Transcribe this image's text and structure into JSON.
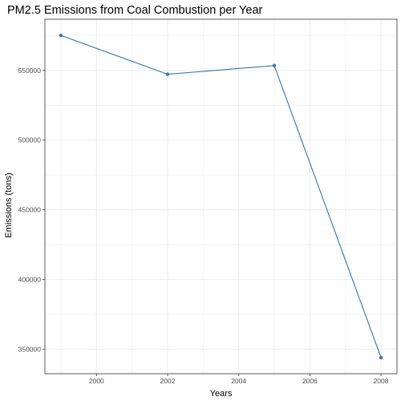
{
  "chart_data": {
    "type": "line",
    "title": "PM2.5 Emissions from Coal Combustion per Year",
    "xlabel": "Years",
    "ylabel": "Emissions (tons)",
    "x": [
      1999,
      2002,
      2005,
      2008
    ],
    "series": [
      {
        "values": [
          575200,
          547300,
          553500,
          343900
        ]
      }
    ],
    "xlim": [
      1998.55,
      2008.45
    ],
    "ylim": [
      332300,
      586800
    ],
    "xticks": [
      2000,
      2002,
      2004,
      2006,
      2008
    ],
    "xtick_labels": [
      "2000",
      "2002",
      "2004",
      "2006",
      "2008"
    ],
    "yticks": [
      350000,
      400000,
      450000,
      500000,
      550000
    ],
    "ytick_labels": [
      "350000",
      "400000",
      "450000",
      "500000",
      "550000"
    ],
    "grid": true,
    "colors": {
      "line": "#3a73ad",
      "grid": "#ebebeb",
      "border": "#333333"
    }
  }
}
